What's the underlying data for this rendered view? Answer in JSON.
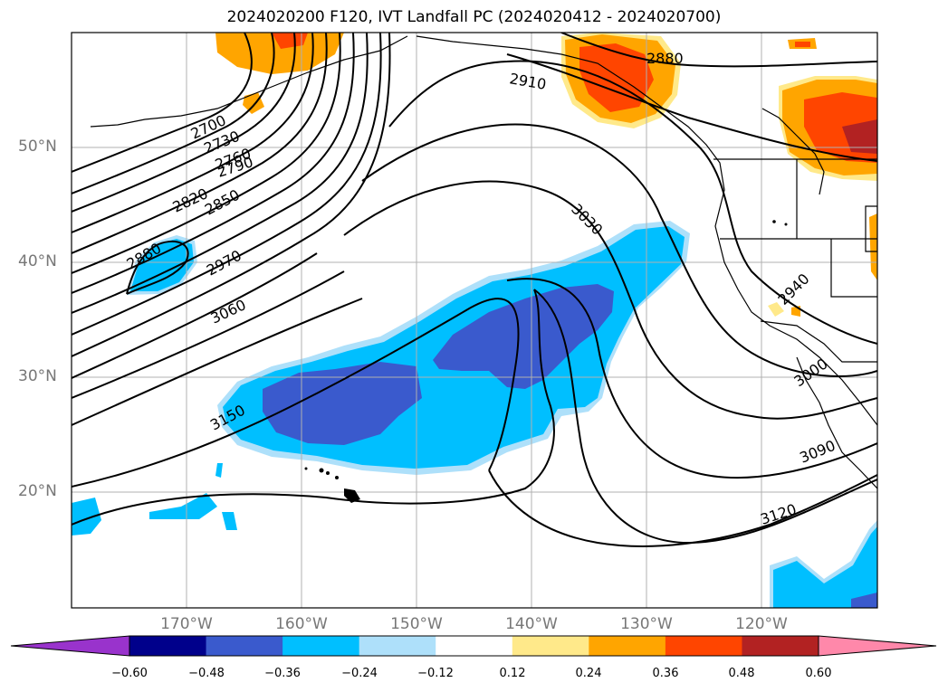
{
  "title": "2024020200 F120, IVT Landfall PC (2024020412 - 2024020700)",
  "lat_labels": [
    "50°N",
    "40°N",
    "30°N",
    "20°N"
  ],
  "lon_labels": [
    "170°W",
    "160°W",
    "150°W",
    "140°W",
    "130°W",
    "120°W"
  ],
  "contour_labels": [
    "2700",
    "2730",
    "2760",
    "2790",
    "2820",
    "2850",
    "2880",
    "2970",
    "3060",
    "3150",
    "2910",
    "2880",
    "3030",
    "2940",
    "3000",
    "3090",
    "3120"
  ],
  "colorbar": {
    "ticks": [
      "−0.60",
      "−0.48",
      "−0.36",
      "−0.24",
      "−0.12",
      "0.12",
      "0.24",
      "0.36",
      "0.48",
      "0.60"
    ],
    "colors": [
      "#9933cc",
      "#00008b",
      "#3a5acd",
      "#00bfff",
      "#aee0fa",
      "#ffffff",
      "#ffe98a",
      "#ffa500",
      "#ff4500",
      "#b22222",
      "#ff88aa",
      "#ff88aa"
    ]
  }
}
